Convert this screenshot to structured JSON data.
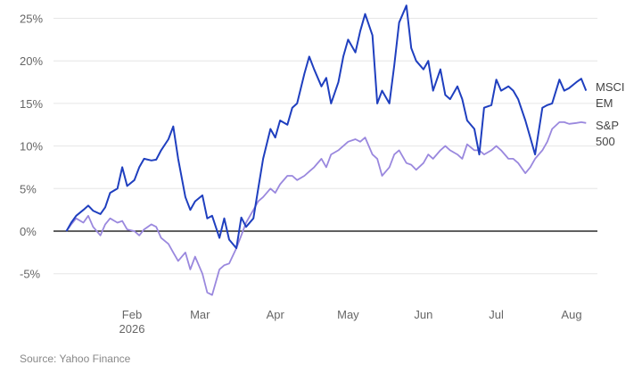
{
  "colors": {
    "msci_em": "#1f3fbf",
    "sp500": "#9a88de",
    "grid": "#e6e6e6",
    "zero": "#000000"
  },
  "source": "Source: Yahoo Finance",
  "chart_data": {
    "type": "line",
    "title": "",
    "xlabel": "",
    "ylabel": "",
    "ylim": [
      -8,
      27
    ],
    "grid": "horizontal",
    "y_ticks": [
      {
        "value": 25,
        "label": "25%"
      },
      {
        "value": 20,
        "label": "20%"
      },
      {
        "value": 15,
        "label": "15%"
      },
      {
        "value": 10,
        "label": "10%"
      },
      {
        "value": 5,
        "label": "5%"
      },
      {
        "value": 0,
        "label": "0%"
      },
      {
        "value": -5,
        "label": "-5%"
      }
    ],
    "x_ticks": [
      {
        "date": "2026-02-01",
        "label": "Feb",
        "sublabel": "2026"
      },
      {
        "date": "2026-03-01",
        "label": "Mar"
      },
      {
        "date": "2026-04-01",
        "label": "Apr"
      },
      {
        "date": "2026-05-01",
        "label": "May"
      },
      {
        "date": "2026-06-01",
        "label": "Jun"
      },
      {
        "date": "2026-07-01",
        "label": "Jul"
      },
      {
        "date": "2026-08-01",
        "label": "Aug"
      }
    ],
    "x": [
      "2026-01-05",
      "2026-01-07",
      "2026-01-09",
      "2026-01-12",
      "2026-01-14",
      "2026-01-16",
      "2026-01-19",
      "2026-01-21",
      "2026-01-23",
      "2026-01-26",
      "2026-01-28",
      "2026-01-30",
      "2026-02-02",
      "2026-02-04",
      "2026-02-06",
      "2026-02-09",
      "2026-02-11",
      "2026-02-13",
      "2026-02-16",
      "2026-02-18",
      "2026-02-20",
      "2026-02-23",
      "2026-02-25",
      "2026-02-27",
      "2026-03-02",
      "2026-03-04",
      "2026-03-06",
      "2026-03-09",
      "2026-03-11",
      "2026-03-13",
      "2026-03-16",
      "2026-03-18",
      "2026-03-20",
      "2026-03-23",
      "2026-03-25",
      "2026-03-27",
      "2026-03-30",
      "2026-04-01",
      "2026-04-03",
      "2026-04-06",
      "2026-04-08",
      "2026-04-10",
      "2026-04-13",
      "2026-04-15",
      "2026-04-17",
      "2026-04-20",
      "2026-04-22",
      "2026-04-24",
      "2026-04-27",
      "2026-04-29",
      "2026-05-01",
      "2026-05-04",
      "2026-05-06",
      "2026-05-08",
      "2026-05-11",
      "2026-05-13",
      "2026-05-15",
      "2026-05-18",
      "2026-05-20",
      "2026-05-22",
      "2026-05-25",
      "2026-05-27",
      "2026-05-29",
      "2026-06-01",
      "2026-06-03",
      "2026-06-05",
      "2026-06-08",
      "2026-06-10",
      "2026-06-12",
      "2026-06-15",
      "2026-06-17",
      "2026-06-19",
      "2026-06-22",
      "2026-06-24",
      "2026-06-26",
      "2026-06-29",
      "2026-07-01",
      "2026-07-03",
      "2026-07-06",
      "2026-07-08",
      "2026-07-10",
      "2026-07-13",
      "2026-07-15",
      "2026-07-17",
      "2026-07-20",
      "2026-07-22",
      "2026-07-24",
      "2026-07-27",
      "2026-07-29",
      "2026-07-31",
      "2026-08-03",
      "2026-08-05",
      "2026-08-07"
    ],
    "series": [
      {
        "name": "MSCI EM",
        "color": "#1f3fbf",
        "label_lines": [
          "MSCI",
          "EM"
        ],
        "values": [
          0,
          1.0,
          1.8,
          2.5,
          3.0,
          2.4,
          2.0,
          2.8,
          4.5,
          5.0,
          7.5,
          5.3,
          6.0,
          7.5,
          8.5,
          8.3,
          8.4,
          9.5,
          10.8,
          12.3,
          8.5,
          4.0,
          2.5,
          3.5,
          4.2,
          1.5,
          1.8,
          -0.8,
          1.5,
          -1.0,
          -2.0,
          1.6,
          0.5,
          1.5,
          5.0,
          8.5,
          12.0,
          11.0,
          13.0,
          12.5,
          14.5,
          15.0,
          18.5,
          20.5,
          19.0,
          17.0,
          18.0,
          15.0,
          17.5,
          20.5,
          22.5,
          21.0,
          23.5,
          25.5,
          23.0,
          15.0,
          16.5,
          15.0,
          19.5,
          24.5,
          26.5,
          21.5,
          20.0,
          19.0,
          20.0,
          16.5,
          19.0,
          16.0,
          15.5,
          17.0,
          15.5,
          13.0,
          12.0,
          9.0,
          14.5,
          14.8,
          17.8,
          16.5,
          17.0,
          16.5,
          15.5,
          13.0,
          11.0,
          9.0,
          14.5,
          14.8,
          15.0,
          17.8,
          16.5,
          16.8,
          17.5,
          17.9,
          16.5
        ]
      },
      {
        "name": "S&P 500",
        "color": "#9a88de",
        "label_lines": [
          "S&P",
          "500"
        ],
        "values": [
          0,
          0.8,
          1.5,
          1.0,
          1.8,
          0.5,
          -0.5,
          0.8,
          1.5,
          1.0,
          1.2,
          0.2,
          0,
          -0.5,
          0.2,
          0.8,
          0.5,
          -0.8,
          -1.5,
          -2.5,
          -3.5,
          -2.5,
          -4.5,
          -3.0,
          -5.0,
          -7.2,
          -7.5,
          -4.5,
          -4.0,
          -3.8,
          -2.0,
          -0.5,
          1.0,
          2.5,
          3.5,
          4.0,
          5.0,
          4.5,
          5.5,
          6.5,
          6.5,
          6.0,
          6.5,
          7.0,
          7.5,
          8.5,
          7.5,
          9.0,
          9.5,
          10.0,
          10.5,
          10.8,
          10.5,
          11.0,
          9.0,
          8.5,
          6.5,
          7.5,
          9.0,
          9.5,
          8.0,
          7.8,
          7.2,
          8.0,
          9.0,
          8.5,
          9.5,
          10.0,
          9.5,
          9.0,
          8.5,
          10.2,
          9.5,
          9.5,
          9.0,
          9.5,
          10.0,
          9.5,
          8.5,
          8.5,
          8.0,
          6.8,
          7.5,
          8.5,
          9.5,
          10.5,
          12.0,
          12.8,
          12.8,
          12.6,
          12.7,
          12.8,
          12.7
        ]
      }
    ]
  }
}
